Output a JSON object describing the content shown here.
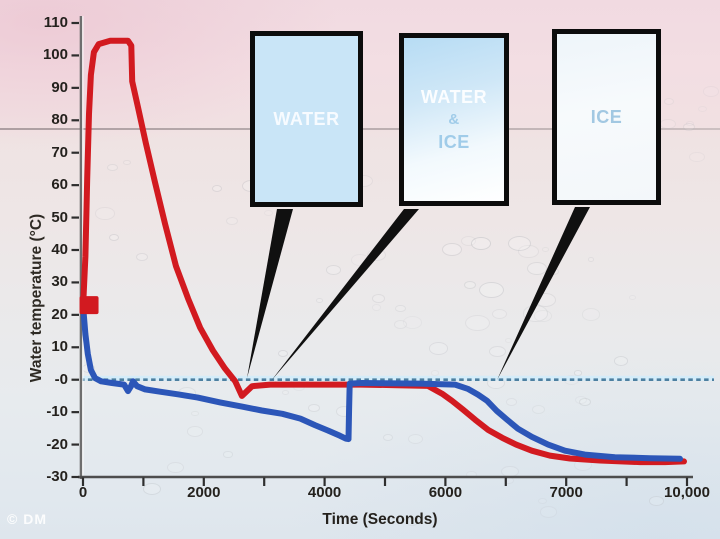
{
  "watermark": "© DM",
  "callouts": [
    {
      "id": "box-water",
      "lines": [
        "WATER"
      ]
    },
    {
      "id": "box-water-ice",
      "lines": [
        "WATER",
        "&",
        "ICE"
      ]
    },
    {
      "id": "box-ice",
      "lines": [
        "ICE"
      ]
    }
  ],
  "chart_data": {
    "type": "line",
    "title": "",
    "xlabel": "Time (Seconds)",
    "ylabel": "Water temperature (°C)",
    "ylim": [
      -30,
      110
    ],
    "y_tick_labels": [
      "110",
      "100",
      "90",
      "80",
      "70",
      "60",
      "50",
      "40",
      "30",
      "20",
      "10",
      "-0",
      "-10",
      "-20",
      "-30"
    ],
    "y_tick_values": [
      110,
      100,
      90,
      80,
      70,
      60,
      50,
      40,
      30,
      20,
      10,
      0,
      -10,
      -20,
      -30
    ],
    "x_tick_values": [
      0,
      1000,
      2000,
      3000,
      4000,
      5000,
      6000,
      6500,
      7000,
      8500,
      10000
    ],
    "x_tick_labels": [
      "0",
      "",
      "2000",
      "",
      "4000",
      "",
      "6000",
      "",
      "7000",
      "",
      "10,000"
    ],
    "grid": false,
    "legend": "none",
    "zero_line": {
      "temp": 0,
      "style": "dashed",
      "color": "#4d7fa0"
    },
    "start_marker": {
      "t": 100,
      "temp": 23,
      "color": "#d21a20"
    },
    "series": [
      {
        "name": "red-line",
        "color": "#d21a20",
        "points": [
          [
            0,
            22
          ],
          [
            40,
            38
          ],
          [
            70,
            62
          ],
          [
            100,
            82
          ],
          [
            130,
            94
          ],
          [
            180,
            101
          ],
          [
            260,
            103.5
          ],
          [
            450,
            104.5
          ],
          [
            745,
            104.5
          ],
          [
            800,
            103
          ],
          [
            815,
            92
          ],
          [
            910,
            84
          ],
          [
            1040,
            73
          ],
          [
            1190,
            61
          ],
          [
            1360,
            48
          ],
          [
            1540,
            35
          ],
          [
            1740,
            25
          ],
          [
            1940,
            16
          ],
          [
            2150,
            9
          ],
          [
            2350,
            3.5
          ],
          [
            2520,
            -0.5
          ],
          [
            2630,
            -5
          ],
          [
            2800,
            -2
          ],
          [
            3100,
            -1.5
          ],
          [
            3600,
            -1.5
          ],
          [
            4600,
            -1.5
          ],
          [
            5200,
            -1.7
          ],
          [
            5710,
            -1.9
          ],
          [
            5945,
            -4.3
          ],
          [
            6055,
            -6.5
          ],
          [
            6145,
            -9.2
          ],
          [
            6245,
            -12.3
          ],
          [
            6355,
            -15.5
          ],
          [
            6470,
            -17.9
          ],
          [
            6585,
            -20
          ],
          [
            6715,
            -21.9
          ],
          [
            6865,
            -23.4
          ],
          [
            7095,
            -24.3
          ],
          [
            7840,
            -24.9
          ],
          [
            8835,
            -25.4
          ],
          [
            9455,
            -25.4
          ],
          [
            9925,
            -25.2
          ]
        ]
      },
      {
        "name": "blue-line",
        "color": "#2c56b8",
        "points": [
          [
            0,
            23
          ],
          [
            40,
            14
          ],
          [
            80,
            8
          ],
          [
            130,
            3
          ],
          [
            200,
            0.5
          ],
          [
            300,
            -0.5
          ],
          [
            480,
            -1
          ],
          [
            680,
            -1.5
          ],
          [
            745,
            -3.5
          ],
          [
            795,
            -2
          ],
          [
            828,
            -0.5
          ],
          [
            895,
            -2
          ],
          [
            1030,
            -3
          ],
          [
            1275,
            -3.7
          ],
          [
            1570,
            -4.5
          ],
          [
            1900,
            -5.5
          ],
          [
            2270,
            -7
          ],
          [
            2630,
            -8.3
          ],
          [
            2960,
            -9.5
          ],
          [
            3300,
            -10.5
          ],
          [
            3600,
            -12
          ],
          [
            3840,
            -14
          ],
          [
            4060,
            -15.7
          ],
          [
            4255,
            -17.3
          ],
          [
            4355,
            -18.2
          ],
          [
            4395,
            -18.3
          ],
          [
            4405,
            -9
          ],
          [
            4415,
            -1.2
          ],
          [
            4620,
            -1
          ],
          [
            5580,
            -1.2
          ],
          [
            6080,
            -1.5
          ],
          [
            6185,
            -2.8
          ],
          [
            6270,
            -4.6
          ],
          [
            6345,
            -6.5
          ],
          [
            6425,
            -9.6
          ],
          [
            6510,
            -12.3
          ],
          [
            6600,
            -15.1
          ],
          [
            6715,
            -17.6
          ],
          [
            6850,
            -20
          ],
          [
            6990,
            -21.9
          ],
          [
            7465,
            -23.1
          ],
          [
            8210,
            -23.9
          ],
          [
            9080,
            -24.2
          ],
          [
            9825,
            -24.4
          ]
        ]
      }
    ]
  }
}
